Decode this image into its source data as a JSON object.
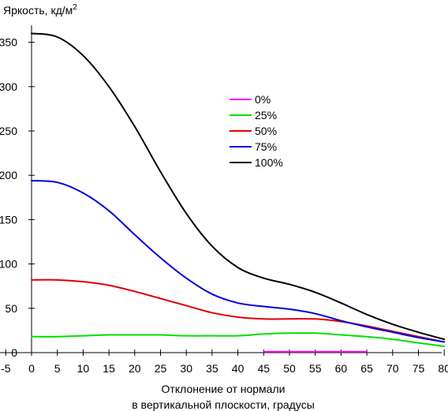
{
  "chart_data": {
    "type": "line",
    "ylabel": "Яркость, кд/м",
    "ylabel_sup": "2",
    "xlabel_line1": "Отклонение от нормали",
    "xlabel_line2": "в вертикальной плоскости, градусы",
    "xlim": [
      -5,
      80
    ],
    "ylim": [
      0,
      370
    ],
    "xticks": [
      -5,
      0,
      5,
      10,
      15,
      20,
      25,
      30,
      35,
      40,
      45,
      50,
      55,
      60,
      65,
      70,
      75,
      80
    ],
    "yticks": [
      0,
      50,
      100,
      150,
      200,
      250,
      300,
      350
    ],
    "grid": false,
    "legend_position": "center-right",
    "x": [
      0,
      5,
      10,
      15,
      20,
      25,
      30,
      35,
      40,
      45,
      50,
      55,
      60,
      65,
      70,
      75,
      80
    ],
    "series": [
      {
        "name": "0%",
        "color": "#ff00ff",
        "x": [
          45,
          65
        ],
        "values": [
          1,
          1
        ]
      },
      {
        "name": "25%",
        "color": "#00e000",
        "values": [
          18,
          18,
          19,
          20,
          20,
          20,
          19,
          19,
          19,
          21,
          22,
          22,
          20,
          18,
          15,
          11,
          7
        ]
      },
      {
        "name": "50%",
        "color": "#e00000",
        "values": [
          82,
          82,
          80,
          76,
          69,
          61,
          53,
          45,
          40,
          38,
          38,
          38,
          35,
          30,
          24,
          18,
          12
        ]
      },
      {
        "name": "75%",
        "color": "#0000e0",
        "values": [
          194,
          192,
          180,
          160,
          133,
          107,
          84,
          66,
          56,
          52,
          49,
          44,
          36,
          29,
          23,
          17,
          12
        ]
      },
      {
        "name": "100%",
        "color": "#000000",
        "values": [
          360,
          356,
          335,
          300,
          255,
          204,
          157,
          120,
          96,
          84,
          77,
          68,
          56,
          43,
          32,
          23,
          15
        ]
      }
    ]
  }
}
